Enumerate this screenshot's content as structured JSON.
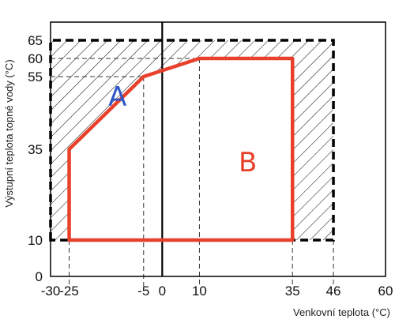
{
  "chart_data": {
    "type": "area",
    "xlabel": "Venkovní teplota (°C)",
    "ylabel": "Výstupní teplota topné vody (°C)",
    "xlim": [
      -30,
      60
    ],
    "ylim": [
      0,
      70
    ],
    "x_ticks": [
      -30,
      -25,
      -5,
      0,
      10,
      35,
      46,
      60
    ],
    "y_ticks": [
      0,
      10,
      35,
      55,
      60,
      65
    ],
    "grid": false,
    "series": [
      {
        "name": "A",
        "style": "hatched region, dashed black boundary",
        "points": [
          [
            -30,
            10
          ],
          [
            -30,
            65
          ],
          [
            46,
            65
          ],
          [
            46,
            10
          ]
        ]
      },
      {
        "name": "B",
        "style": "red outlined region",
        "points": [
          [
            -25,
            10
          ],
          [
            -25,
            35
          ],
          [
            -5,
            55
          ],
          [
            10,
            60
          ],
          [
            35,
            60
          ],
          [
            35,
            10
          ]
        ]
      }
    ],
    "region_labels": [
      {
        "text": "A",
        "x": -12,
        "y": 49,
        "color": "#2f55c8"
      },
      {
        "text": "B",
        "x": 23,
        "y": 31,
        "color": "#e8402a"
      }
    ],
    "guide_lines": {
      "vertical": [
        [
          -25,
          10
        ],
        [
          -5,
          55
        ],
        [
          10,
          60
        ],
        [
          35,
          10
        ],
        [
          46,
          10
        ]
      ],
      "horizontal": [
        [
          60,
          10
        ],
        [
          55,
          -5
        ]
      ]
    },
    "colors": {
      "hatch": "#1a1a1a",
      "outline_b": "#e8402a",
      "label_a": "#2f55c8",
      "label_b": "#e8402a"
    }
  }
}
